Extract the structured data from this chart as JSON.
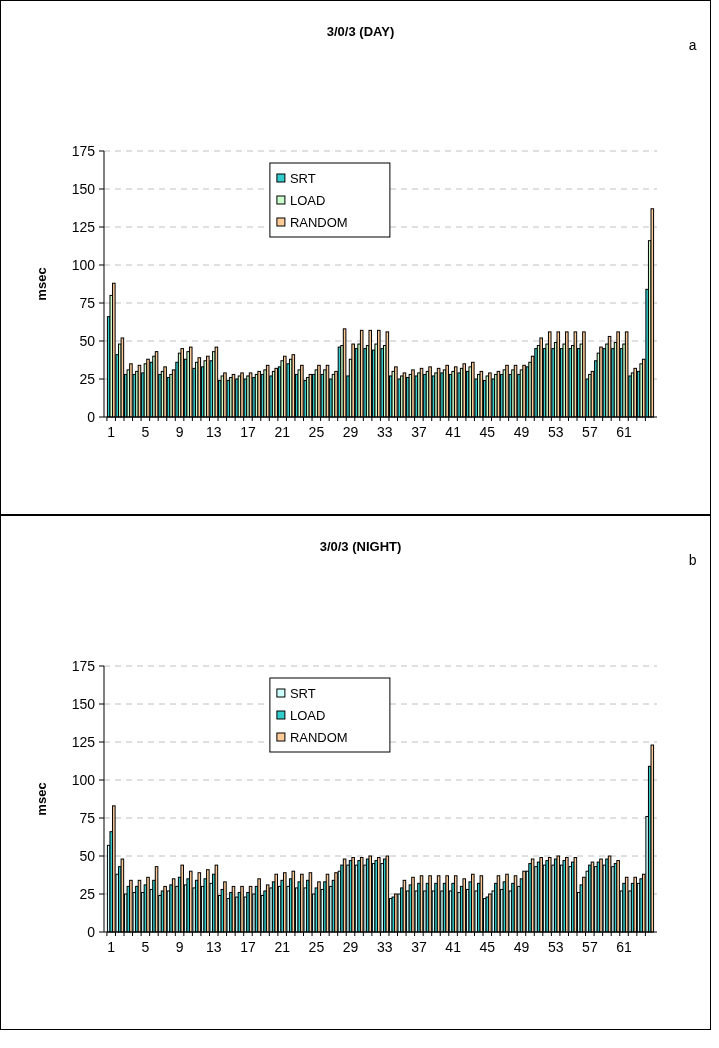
{
  "chart_data": [
    {
      "type": "bar",
      "title": "3/0/3 (DAY)",
      "ylabel": "msec",
      "annotations": [
        "a"
      ],
      "categories": [
        "1",
        null,
        null,
        null,
        "5",
        null,
        null,
        null,
        "9",
        null,
        null,
        null,
        "13",
        null,
        null,
        null,
        "17",
        null,
        null,
        null,
        "21",
        null,
        null,
        null,
        "25",
        null,
        null,
        null,
        "29",
        null,
        null,
        null,
        "33",
        null,
        null,
        null,
        "37",
        null,
        null,
        null,
        "41",
        null,
        null,
        null,
        "45",
        null,
        null,
        null,
        "49",
        null,
        null,
        null,
        "53",
        null,
        null,
        null,
        "57",
        null,
        null,
        null,
        "61",
        null,
        null,
        null
      ],
      "ylim": [
        0,
        175
      ],
      "yticks": [
        0,
        25,
        50,
        75,
        100,
        125,
        150,
        175
      ],
      "grid": "y",
      "legend": "top",
      "series": [
        {
          "name": "SRT",
          "color": "#33cccc",
          "values": [
            66,
            41,
            28,
            28,
            29,
            36,
            28,
            26,
            36,
            38,
            32,
            33,
            37,
            24,
            24,
            25,
            25,
            26,
            28,
            27,
            33,
            35,
            28,
            24,
            28,
            28,
            25,
            46,
            27,
            45,
            45,
            44,
            45,
            27,
            25,
            26,
            27,
            28,
            27,
            29,
            28,
            29,
            30,
            25,
            24,
            25,
            28,
            28,
            28,
            33,
            45,
            45,
            45,
            45,
            45,
            45,
            25,
            37,
            45,
            45,
            45,
            27,
            30,
            84
          ]
        },
        {
          "name": "LOAD",
          "color": "#ccffcc",
          "values": [
            80,
            48,
            31,
            30,
            35,
            40,
            30,
            28,
            42,
            43,
            36,
            37,
            43,
            27,
            26,
            27,
            27,
            28,
            31,
            30,
            37,
            38,
            31,
            26,
            31,
            31,
            28,
            47,
            38,
            48,
            47,
            48,
            47,
            30,
            27,
            28,
            29,
            30,
            29,
            31,
            30,
            32,
            33,
            28,
            27,
            28,
            31,
            31,
            31,
            36,
            47,
            48,
            49,
            48,
            47,
            48,
            28,
            42,
            48,
            49,
            48,
            29,
            35,
            116
          ]
        },
        {
          "name": "RANDOM",
          "color": "#ffcc99",
          "values": [
            88,
            52,
            35,
            34,
            38,
            43,
            33,
            31,
            45,
            46,
            39,
            40,
            46,
            29,
            28,
            29,
            29,
            30,
            34,
            32,
            40,
            41,
            34,
            28,
            34,
            34,
            30,
            58,
            48,
            57,
            57,
            57,
            56,
            33,
            29,
            31,
            32,
            33,
            32,
            34,
            33,
            35,
            36,
            30,
            29,
            30,
            34,
            34,
            34,
            40,
            52,
            56,
            56,
            56,
            56,
            56,
            30,
            46,
            53,
            56,
            56,
            32,
            38,
            137
          ]
        }
      ]
    },
    {
      "type": "bar",
      "title": "3/0/3 (NIGHT)",
      "ylabel": "msec",
      "annotations": [
        "b"
      ],
      "categories": [
        "1",
        null,
        null,
        null,
        "5",
        null,
        null,
        null,
        "9",
        null,
        null,
        null,
        "13",
        null,
        null,
        null,
        "17",
        null,
        null,
        null,
        "21",
        null,
        null,
        null,
        "25",
        null,
        null,
        null,
        "29",
        null,
        null,
        null,
        "33",
        null,
        null,
        null,
        "37",
        null,
        null,
        null,
        "41",
        null,
        null,
        null,
        "45",
        null,
        null,
        null,
        "49",
        null,
        null,
        null,
        "53",
        null,
        null,
        null,
        "57",
        null,
        null,
        null,
        "61",
        null,
        null,
        null
      ],
      "ylim": [
        0,
        175
      ],
      "yticks": [
        0,
        25,
        50,
        75,
        100,
        125,
        150,
        175
      ],
      "grid": "y",
      "legend": "top",
      "series": [
        {
          "name": "SRT",
          "color": "#ccffff",
          "values": [
            57,
            38,
            25,
            26,
            26,
            28,
            24,
            27,
            30,
            31,
            29,
            30,
            32,
            24,
            22,
            23,
            23,
            25,
            24,
            29,
            30,
            30,
            29,
            29,
            25,
            28,
            30,
            40,
            44,
            44,
            44,
            45,
            45,
            22,
            25,
            27,
            27,
            27,
            27,
            27,
            27,
            26,
            28,
            27,
            22,
            27,
            28,
            27,
            30,
            40,
            43,
            44,
            44,
            44,
            43,
            26,
            40,
            43,
            44,
            43,
            27,
            27,
            32,
            76
          ]
        },
        {
          "name": "LOAD",
          "color": "#33cccc",
          "values": [
            66,
            43,
            30,
            30,
            31,
            34,
            27,
            31,
            36,
            35,
            34,
            35,
            38,
            28,
            26,
            26,
            26,
            30,
            27,
            33,
            34,
            35,
            33,
            34,
            29,
            33,
            34,
            44,
            47,
            47,
            48,
            47,
            48,
            23,
            29,
            31,
            32,
            32,
            32,
            32,
            32,
            30,
            33,
            32,
            23,
            32,
            33,
            32,
            35,
            45,
            46,
            47,
            48,
            47,
            46,
            31,
            44,
            46,
            48,
            45,
            32,
            32,
            35,
            109
          ]
        },
        {
          "name": "RANDOM",
          "color": "#ffcc99",
          "values": [
            83,
            48,
            34,
            34,
            36,
            43,
            30,
            35,
            44,
            40,
            39,
            41,
            44,
            33,
            30,
            30,
            30,
            35,
            31,
            38,
            39,
            40,
            38,
            39,
            33,
            38,
            39,
            48,
            49,
            49,
            50,
            49,
            50,
            25,
            34,
            36,
            37,
            37,
            37,
            37,
            37,
            35,
            38,
            37,
            25,
            37,
            38,
            37,
            40,
            48,
            49,
            49,
            50,
            49,
            49,
            36,
            46,
            48,
            50,
            47,
            36,
            36,
            38,
            123
          ]
        }
      ]
    }
  ]
}
